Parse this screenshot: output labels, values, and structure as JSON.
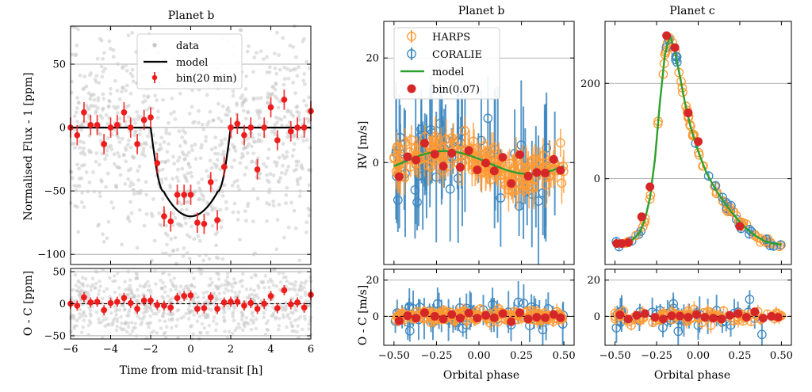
{
  "colors": {
    "raw": "#c8c8c8",
    "bin_transit": "#ee1c1c",
    "model_transit": "#000000",
    "harps": "#ff9a33",
    "coralie": "#3b86c0",
    "model_rv": "#2ca02c",
    "bin_rv": "#d62728",
    "grid": "#9a9a9a"
  },
  "chart_data": [
    {
      "id": "transit",
      "type": "scatter",
      "title": "Planet b",
      "xlabel": "Time from mid-transit [h]",
      "ylabel": "Normalised Flux - 1 [ppm]",
      "xlim": [
        -6,
        6
      ],
      "ylim": [
        -108,
        80
      ],
      "xticks": [
        -6,
        -4,
        -2,
        0,
        2,
        4,
        6
      ],
      "xtick_labels": [
        "−6",
        "−4",
        "−2",
        "0",
        "2",
        "4",
        "6"
      ],
      "yticks": [
        -100,
        -50,
        0,
        50
      ],
      "ytick_labels": [
        "−100",
        "−50",
        "0",
        "50"
      ],
      "grid": "horizontal",
      "legend": {
        "position": "upper-center",
        "entries": [
          "data",
          "model",
          "bin(20 min)"
        ]
      },
      "model": {
        "depth": 70,
        "t1": -2.0,
        "t2": -1.35,
        "t3": 1.35,
        "t4": 2.0
      },
      "bins": {
        "x": [
          -6.0,
          -5.67,
          -5.33,
          -5.0,
          -4.67,
          -4.33,
          -4.0,
          -3.67,
          -3.33,
          -3.0,
          -2.67,
          -2.33,
          -2.0,
          -1.67,
          -1.33,
          -1.0,
          -0.67,
          -0.33,
          0.0,
          0.33,
          0.67,
          1.0,
          1.33,
          1.67,
          2.0,
          2.33,
          2.67,
          3.0,
          3.33,
          3.67,
          4.0,
          4.33,
          4.67,
          5.0,
          5.33,
          5.67,
          6.0
        ],
        "y": [
          0,
          -6,
          12,
          2,
          2,
          -13,
          0,
          2,
          12,
          0,
          -13,
          6,
          8,
          -28,
          -70,
          -74,
          -53,
          -53,
          -53,
          -75,
          -76,
          -43,
          -73,
          -31,
          0,
          3,
          -6,
          0,
          -33,
          0,
          16,
          -10,
          22,
          -3,
          0,
          0,
          13
        ],
        "err": 8
      },
      "raw_count": 900,
      "raw_seed": 7
    },
    {
      "id": "transit_res",
      "type": "scatter",
      "ylabel": "O - C [ppm]",
      "xlabel": "Time from mid-transit [h]",
      "xlim": [
        -6,
        6
      ],
      "ylim": [
        -55,
        55
      ],
      "xticks": [
        -6,
        -4,
        -2,
        0,
        2,
        4,
        6
      ],
      "xtick_labels": [
        "−6",
        "−4",
        "−2",
        "0",
        "2",
        "4",
        "6"
      ],
      "yticks": [
        -50,
        0,
        50
      ],
      "ytick_labels": [
        "−50",
        "0",
        "50"
      ],
      "grid": "horizontal",
      "bins": {
        "y": [
          0,
          -3,
          10,
          2,
          3,
          -10,
          1,
          3,
          9,
          1,
          -8,
          5,
          5,
          -2,
          -3,
          -6,
          9,
          12,
          13,
          -8,
          -7,
          10,
          -8,
          2,
          3,
          3,
          -3,
          1,
          -8,
          0,
          12,
          -7,
          21,
          -1,
          2,
          -6,
          14
        ],
        "err": 8
      },
      "raw_count": 700,
      "raw_seed": 11
    },
    {
      "id": "rv_b",
      "type": "scatter",
      "title": "Planet b",
      "ylabel": "RV [m/s]",
      "xlabel": "Orbital phase",
      "xlim": [
        -0.56,
        0.56
      ],
      "ylim": [
        -19.5,
        27
      ],
      "xticks": [
        -0.5,
        -0.25,
        0.0,
        0.25,
        0.5
      ],
      "xtick_labels": [
        "−0.50",
        "−0.25",
        "0.00",
        "0.25",
        "0.50"
      ],
      "yticks": [
        0,
        20
      ],
      "ytick_labels": [
        "0",
        "20"
      ],
      "grid": "horizontal",
      "legend": {
        "position": "upper-left",
        "entries": [
          "HARPS",
          "CORALIE",
          "model",
          "bin(0.07)"
        ]
      },
      "model": {
        "amp": 2.2,
        "phase0": -0.2
      },
      "bins": {
        "x": [
          -0.47,
          -0.42,
          -0.37,
          -0.32,
          -0.26,
          -0.21,
          -0.16,
          -0.11,
          -0.06,
          -0.01,
          0.04,
          0.09,
          0.14,
          0.19,
          0.24,
          0.29,
          0.34,
          0.39,
          0.44,
          0.48
        ],
        "y": [
          -2.7,
          1.1,
          0.5,
          3.7,
          1.6,
          -0.7,
          1.8,
          -0.9,
          2.3,
          -1.4,
          -0.1,
          -1.6,
          1.0,
          -4.0,
          1.5,
          -2.6,
          -1.9,
          -2.0,
          0.6,
          -1.5
        ]
      },
      "harps_count": 170,
      "harps_seed": 21,
      "coralie_count": 75,
      "coralie_seed": 33
    },
    {
      "id": "rv_b_res",
      "type": "scatter",
      "ylabel": "O - C [m/s]",
      "xlabel": "Orbital phase",
      "xlim": [
        -0.56,
        0.56
      ],
      "ylim": [
        -16,
        26
      ],
      "xticks": [
        -0.5,
        -0.25,
        0.0,
        0.25,
        0.5
      ],
      "xtick_labels": [
        "−0.50",
        "−0.25",
        "0.00",
        "0.25",
        "0.50"
      ],
      "yticks": [
        0,
        20
      ],
      "ytick_labels": [
        "0",
        "20"
      ],
      "grid": "horizontal",
      "bins": {
        "y": [
          -2.5,
          0.3,
          -1.0,
          2.0,
          0.0,
          -1.5,
          1.0,
          -1.0,
          1.8,
          -1.0,
          0.5,
          -0.8,
          1.5,
          -3.0,
          2.0,
          -1.5,
          -0.5,
          -0.8,
          1.0,
          -0.8
        ]
      },
      "harps_seed": 41,
      "coralie_seed": 53
    },
    {
      "id": "rv_c",
      "type": "scatter",
      "title": "Planet c",
      "xlabel": "Orbital phase",
      "xlim": [
        -0.56,
        0.56
      ],
      "ylim": [
        -180,
        330
      ],
      "xticks": [
        -0.5,
        -0.25,
        0.0,
        0.25,
        0.5
      ],
      "xtick_labels": [
        "−0.50",
        "−0.25",
        "0.00",
        "0.25",
        "0.50"
      ],
      "yticks": [
        0,
        200
      ],
      "ytick_labels": [
        "0",
        "200"
      ],
      "grid": "horizontal",
      "model": {
        "x": [
          -0.5,
          -0.45,
          -0.4,
          -0.35,
          -0.32,
          -0.29,
          -0.26,
          -0.23,
          -0.2,
          -0.17,
          -0.14,
          -0.11,
          -0.08,
          -0.05,
          -0.02,
          0.01,
          0.05,
          0.1,
          0.15,
          0.2,
          0.25,
          0.3,
          0.35,
          0.4,
          0.45,
          0.5
        ],
        "y": [
          -138,
          -136,
          -130,
          -112,
          -85,
          -40,
          40,
          160,
          260,
          300,
          268,
          215,
          160,
          115,
          78,
          48,
          12,
          -20,
          -47,
          -70,
          -91,
          -108,
          -121,
          -131,
          -136,
          -138
        ]
      },
      "bins": {
        "x": [
          -0.49,
          -0.46,
          -0.42,
          -0.34,
          -0.29,
          -0.19,
          -0.14,
          -0.06,
          0.0,
          0.25
        ],
        "y": [
          -136,
          -136,
          -134,
          -80,
          -17,
          300,
          275,
          138,
          78,
          -100
        ]
      },
      "harps_seed": 61,
      "coralie_seed": 71,
      "data_count": 110
    },
    {
      "id": "rv_c_res",
      "type": "scatter",
      "xlabel": "Orbital phase",
      "xlim": [
        -0.56,
        0.56
      ],
      "ylim": [
        -16,
        26
      ],
      "xticks": [
        -0.5,
        -0.25,
        0.0,
        0.25,
        0.5
      ],
      "xtick_labels": [
        "−0.50",
        "−0.25",
        "0.00",
        "0.25",
        "0.50"
      ],
      "yticks": [
        0,
        20
      ],
      "ytick_labels": [
        "0",
        "20"
      ],
      "grid": "horizontal",
      "bins": {
        "x": [
          -0.47,
          -0.42,
          -0.37,
          -0.32,
          -0.26,
          -0.21,
          -0.16,
          -0.11,
          -0.06,
          -0.01,
          0.04,
          0.09,
          0.14,
          0.19,
          0.24,
          0.29,
          0.34,
          0.39,
          0.44,
          0.48
        ],
        "y": [
          0.8,
          -1.5,
          0.5,
          1.5,
          -0.5,
          -1.5,
          0.3,
          0.2,
          -0.5,
          1.0,
          -0.5,
          -1.0,
          -1.5,
          0.5,
          1.5,
          -0.5,
          2.5,
          -1.0,
          0.0,
          -0.5
        ]
      },
      "harps_seed": 81,
      "coralie_seed": 91
    }
  ]
}
